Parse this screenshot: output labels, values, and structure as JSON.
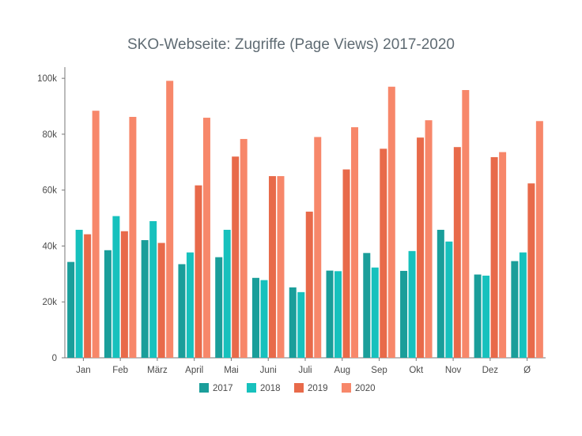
{
  "chart_data": {
    "type": "bar",
    "title": "SKO-Webseite: Zugriffe (Page Views) 2017-2020",
    "xlabel": "",
    "ylabel": "",
    "categories": [
      "Jan",
      "Feb",
      "März",
      "April",
      "Mai",
      "Juni",
      "Juli",
      "Aug",
      "Sep",
      "Okt",
      "Nov",
      "Dez",
      "Ø"
    ],
    "series": [
      {
        "name": "2017",
        "color": "#1a9e9a",
        "values": [
          34300,
          38500,
          42100,
          33500,
          36000,
          28600,
          25200,
          31200,
          37500,
          31100,
          45800,
          29800,
          34600
        ]
      },
      {
        "name": "2018",
        "color": "#17c1bd",
        "values": [
          45800,
          50700,
          48900,
          37700,
          45800,
          27800,
          23500,
          31000,
          32300,
          38200,
          41600,
          29400,
          37700
        ]
      },
      {
        "name": "2019",
        "color": "#e86a4a",
        "values": [
          44200,
          45300,
          41100,
          61700,
          72000,
          65000,
          52300,
          67400,
          74800,
          78800,
          75400,
          71800,
          62400
        ]
      },
      {
        "name": "2020",
        "color": "#f7876a",
        "values": [
          88400,
          86200,
          99100,
          85900,
          78300,
          65000,
          79000,
          82500,
          97000,
          85000,
          95800,
          73600,
          84700
        ]
      }
    ],
    "ylim": [
      0,
      104000
    ],
    "yticks": [
      0,
      20000,
      40000,
      60000,
      80000,
      100000
    ],
    "ytick_labels": [
      "0",
      "20k",
      "40k",
      "60k",
      "80k",
      "100k"
    ],
    "grid": false,
    "legend": "bottom-center"
  }
}
